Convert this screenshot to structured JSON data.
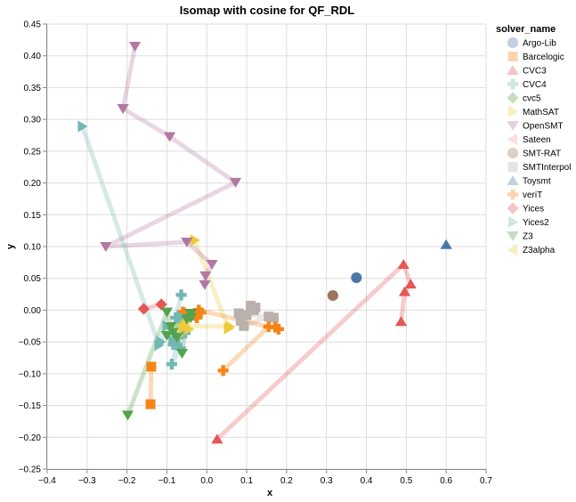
{
  "chart_data": {
    "type": "scatter",
    "title": "Isomap with cosine for QF_RDL",
    "xlabel": "x",
    "ylabel": "y",
    "xlim": [
      -0.4,
      0.7
    ],
    "ylim": [
      -0.25,
      0.45
    ],
    "x_ticks": [
      "−0.4",
      "−0.3",
      "−0.2",
      "−0.1",
      "0.0",
      "0.1",
      "0.2",
      "0.3",
      "0.4",
      "0.5",
      "0.6",
      "0.7"
    ],
    "x_tick_values": [
      -0.4,
      -0.3,
      -0.2,
      -0.1,
      0.0,
      0.1,
      0.2,
      0.3,
      0.4,
      0.5,
      0.6,
      0.7
    ],
    "y_ticks": [
      "0.45",
      "0.40",
      "0.35",
      "0.30",
      "0.25",
      "0.20",
      "0.15",
      "0.10",
      "0.05",
      "0.00",
      "−0.05",
      "−0.10",
      "−0.15",
      "−0.20",
      "−0.25"
    ],
    "y_tick_values": [
      0.45,
      0.4,
      0.35,
      0.3,
      0.25,
      0.2,
      0.15,
      0.1,
      0.05,
      0.0,
      -0.05,
      -0.1,
      -0.15,
      -0.2,
      -0.25
    ],
    "grid": true,
    "legend_title": "solver_name",
    "legend_position": "right",
    "series": [
      {
        "name": "Argo-Lib",
        "color": "#4c78a8",
        "shape": "circle",
        "points": [
          [
            0.375,
            0.051
          ]
        ]
      },
      {
        "name": "Barcelogic",
        "color": "#f58518",
        "shape": "square",
        "points": [
          [
            -0.139,
            -0.089
          ],
          [
            -0.141,
            -0.148
          ]
        ]
      },
      {
        "name": "CVC3",
        "color": "#e45756",
        "shape": "triangle-up",
        "points": [
          [
            0.026,
            -0.203
          ],
          [
            0.493,
            0.072
          ],
          [
            0.511,
            0.041
          ],
          [
            0.496,
            0.029
          ],
          [
            0.487,
            -0.018
          ]
        ]
      },
      {
        "name": "CVC4",
        "color": "#72b7b2",
        "shape": "cross",
        "points": [
          [
            -0.064,
            0.024
          ],
          [
            -0.078,
            -0.012
          ],
          [
            -0.06,
            -0.02
          ],
          [
            -0.054,
            -0.036
          ],
          [
            -0.072,
            -0.043
          ],
          [
            -0.084,
            -0.054
          ],
          [
            -0.066,
            -0.06
          ],
          [
            -0.088,
            -0.085
          ],
          [
            -0.05,
            -0.008
          ]
        ]
      },
      {
        "name": "cvc5",
        "color": "#54a24b",
        "shape": "diamond",
        "points": [
          [
            -0.055,
            -0.005
          ],
          [
            -0.045,
            -0.01
          ],
          [
            -0.032,
            -0.008
          ]
        ]
      },
      {
        "name": "MathSAT",
        "color": "#eeca3b",
        "shape": "triangle-right",
        "points": [
          [
            -0.03,
            0.11
          ],
          [
            0.054,
            -0.029
          ],
          [
            0.058,
            -0.026
          ],
          [
            -0.055,
            -0.025
          ],
          [
            -0.06,
            -0.028
          ],
          [
            -0.045,
            -0.03
          ],
          [
            -0.07,
            -0.04
          ],
          [
            -0.05,
            -0.018
          ]
        ]
      },
      {
        "name": "OpenSMT",
        "color": "#b279a2",
        "shape": "triangle-down",
        "points": [
          [
            -0.18,
            0.415
          ],
          [
            -0.21,
            0.317
          ],
          [
            -0.093,
            0.273
          ],
          [
            0.072,
            0.201
          ],
          [
            -0.253,
            0.1
          ],
          [
            -0.05,
            0.107
          ],
          [
            0.013,
            0.072
          ],
          [
            -0.003,
            0.054
          ],
          [
            -0.005,
            0.04
          ]
        ]
      },
      {
        "name": "Sateen",
        "color": "#ff9da6",
        "shape": "triangle-left",
        "points": []
      },
      {
        "name": "SMT-RAT",
        "color": "#9d755d",
        "shape": "circle",
        "points": [
          [
            0.316,
            0.023
          ]
        ]
      },
      {
        "name": "SMTInterpol",
        "color": "#bab0ac",
        "shape": "square",
        "points": [
          [
            0.11,
            0.007
          ],
          [
            0.122,
            0.004
          ],
          [
            0.1,
            -0.008
          ],
          [
            0.118,
            0.0
          ],
          [
            0.085,
            -0.017
          ],
          [
            0.093,
            -0.025
          ],
          [
            0.155,
            -0.01
          ],
          [
            0.168,
            -0.012
          ],
          [
            0.08,
            -0.005
          ]
        ]
      },
      {
        "name": "Toysmt",
        "color": "#4c78a8",
        "shape": "triangle-up",
        "points": [
          [
            0.6,
            0.103
          ]
        ]
      },
      {
        "name": "veriT",
        "color": "#f58518",
        "shape": "cross",
        "points": [
          [
            0.041,
            -0.095
          ],
          [
            0.155,
            -0.026
          ],
          [
            0.172,
            -0.027
          ],
          [
            0.18,
            -0.03
          ],
          [
            -0.02,
            0.0
          ],
          [
            -0.03,
            -0.005
          ],
          [
            -0.06,
            -0.003
          ],
          [
            -0.025,
            -0.012
          ],
          [
            -0.015,
            -0.004
          ]
        ]
      },
      {
        "name": "Yices",
        "color": "#e45756",
        "shape": "diamond",
        "points": [
          [
            -0.158,
            0.002
          ],
          [
            -0.114,
            0.009
          ]
        ]
      },
      {
        "name": "Yices2",
        "color": "#72b7b2",
        "shape": "triangle-right",
        "points": [
          [
            -0.312,
            0.289
          ],
          [
            -0.12,
            -0.055
          ],
          [
            -0.115,
            -0.05
          ],
          [
            -0.1,
            -0.025
          ],
          [
            -0.075,
            -0.04
          ],
          [
            -0.085,
            -0.048
          ],
          [
            -0.065,
            -0.01
          ]
        ]
      },
      {
        "name": "Z3",
        "color": "#54a24b",
        "shape": "triangle-down",
        "points": [
          [
            -0.198,
            -0.165
          ],
          [
            -0.1,
            -0.003
          ],
          [
            -0.09,
            -0.026
          ],
          [
            -0.085,
            -0.035
          ],
          [
            -0.075,
            -0.043
          ],
          [
            -0.062,
            -0.068
          ],
          [
            -0.05,
            -0.014
          ],
          [
            -0.04,
            -0.012
          ],
          [
            -0.04,
            -0.005
          ],
          [
            -0.1,
            -0.04
          ]
        ]
      },
      {
        "name": "Z3alpha",
        "color": "#eeca3b",
        "shape": "triangle-left",
        "points": []
      }
    ],
    "legend": [
      {
        "name": "Argo-Lib",
        "color": "#4c78a8",
        "shape": "circle"
      },
      {
        "name": "Barcelogic",
        "color": "#f58518",
        "shape": "square"
      },
      {
        "name": "CVC3",
        "color": "#e45756",
        "shape": "triangle-up"
      },
      {
        "name": "CVC4",
        "color": "#72b7b2",
        "shape": "cross"
      },
      {
        "name": "cvc5",
        "color": "#54a24b",
        "shape": "diamond"
      },
      {
        "name": "MathSAT",
        "color": "#eeca3b",
        "shape": "triangle-right"
      },
      {
        "name": "OpenSMT",
        "color": "#b279a2",
        "shape": "triangle-down"
      },
      {
        "name": "Sateen",
        "color": "#ff9da6",
        "shape": "triangle-left"
      },
      {
        "name": "SMT-RAT",
        "color": "#9d755d",
        "shape": "circle"
      },
      {
        "name": "SMTInterpol",
        "color": "#bab0ac",
        "shape": "square"
      },
      {
        "name": "Toysmt",
        "color": "#4c78a8",
        "shape": "triangle-up"
      },
      {
        "name": "veriT",
        "color": "#f58518",
        "shape": "cross"
      },
      {
        "name": "Yices",
        "color": "#e45756",
        "shape": "diamond"
      },
      {
        "name": "Yices2",
        "color": "#72b7b2",
        "shape": "triangle-right"
      },
      {
        "name": "Z3",
        "color": "#54a24b",
        "shape": "triangle-down"
      },
      {
        "name": "Z3alpha",
        "color": "#eeca3b",
        "shape": "triangle-left"
      }
    ]
  }
}
